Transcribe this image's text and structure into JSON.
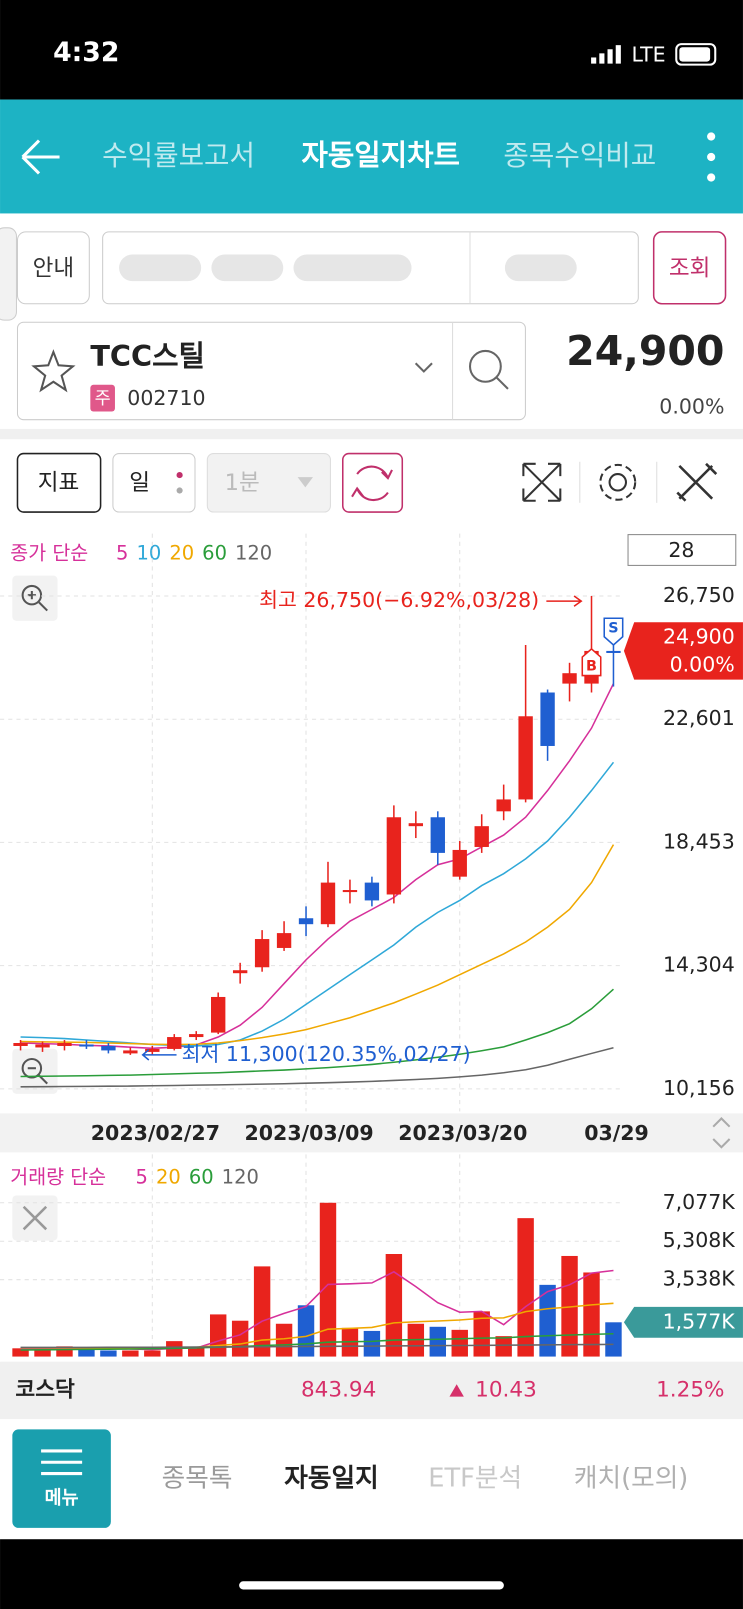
{
  "status": {
    "time": "4:32",
    "network": "LTE"
  },
  "header": {
    "tabs": [
      "수익률보고서",
      "자동일지차트",
      "종목수익비교"
    ]
  },
  "search": {
    "info_button": "안내",
    "query_button": "조회"
  },
  "stock": {
    "name": "TCC스틸",
    "market_badge": "주",
    "code": "002710",
    "price": "24,900",
    "change": "0.00%"
  },
  "toolbar": {
    "indicator": "지표",
    "period": "일",
    "interval": "1분"
  },
  "chart_data": {
    "type": "candlestick",
    "legend_prefix": "종가 단순",
    "visible_count": 28,
    "categories": [
      null,
      null,
      null,
      null,
      null,
      null,
      "2023/02/27",
      null,
      null,
      null,
      null,
      null,
      null,
      "2023/03/09",
      null,
      null,
      null,
      null,
      null,
      null,
      "2023/03/20",
      null,
      null,
      null,
      null,
      null,
      null,
      "03/29"
    ],
    "candles": {
      "open": [
        11600,
        11550,
        11600,
        11650,
        11600,
        11350,
        11400,
        11500,
        11900,
        12050,
        14050,
        14250,
        14900,
        15900,
        15700,
        16800,
        17100,
        16700,
        19000,
        19300,
        17300,
        18300,
        19500,
        19900,
        23500,
        23800,
        23800,
        24900
      ],
      "high": [
        11800,
        11750,
        11800,
        11800,
        11700,
        11550,
        11600,
        12000,
        12100,
        13400,
        14400,
        15500,
        15800,
        16300,
        17800,
        17200,
        17300,
        19700,
        19500,
        19500,
        18500,
        19400,
        20400,
        25100,
        23600,
        24500,
        26750,
        26000
      ],
      "low": [
        11450,
        11400,
        11450,
        11500,
        11350,
        11300,
        11300,
        11450,
        11800,
        12000,
        13700,
        14100,
        14800,
        15300,
        15600,
        16400,
        16300,
        16400,
        18600,
        17700,
        17200,
        18100,
        19200,
        19800,
        21200,
        23200,
        23500,
        23700
      ],
      "close": [
        11700,
        11650,
        11700,
        11600,
        11450,
        11450,
        11500,
        11900,
        12000,
        13250,
        14150,
        15200,
        15400,
        15700,
        17100,
        16850,
        16500,
        19300,
        19100,
        18100,
        18200,
        19000,
        19900,
        22700,
        21700,
        24150,
        24900,
        24900
      ]
    },
    "up_color": "#e8231d",
    "down_color": "#1f5fd1",
    "series": [
      {
        "name": "5",
        "color": "#d6309a",
        "values": [
          11700,
          11680,
          11660,
          11620,
          11600,
          11560,
          11520,
          11560,
          11640,
          11900,
          12300,
          12900,
          13700,
          14500,
          15200,
          15800,
          16200,
          16600,
          17200,
          17700,
          17900,
          18300,
          18700,
          19300,
          20200,
          21200,
          22300,
          23800
        ]
      },
      {
        "name": "10",
        "color": "#2fa8d8",
        "values": [
          11900,
          11880,
          11850,
          11800,
          11750,
          11700,
          11650,
          11620,
          11600,
          11650,
          11800,
          12100,
          12500,
          13000,
          13500,
          14000,
          14500,
          15000,
          15600,
          16100,
          16500,
          17000,
          17400,
          17900,
          18500,
          19300,
          20200,
          21150
        ]
      },
      {
        "name": "20",
        "color": "#f0a800",
        "values": [
          11750,
          11740,
          11730,
          11720,
          11700,
          11680,
          11660,
          11650,
          11660,
          11700,
          11780,
          11880,
          12000,
          12150,
          12350,
          12550,
          12800,
          13050,
          13350,
          13650,
          14000,
          14350,
          14700,
          15100,
          15600,
          16200,
          17100,
          18380
        ]
      },
      {
        "name": "60",
        "color": "#2a9d3a",
        "values": [
          10570,
          10580,
          10590,
          10600,
          10610,
          10620,
          10640,
          10660,
          10680,
          10700,
          10730,
          10760,
          10790,
          10830,
          10870,
          10920,
          10980,
          11050,
          11130,
          11220,
          11320,
          11440,
          11570,
          11800,
          12050,
          12350,
          12850,
          13510
        ]
      },
      {
        "name": "120",
        "color": "#666666",
        "values": [
          10225,
          10230,
          10235,
          10240,
          10245,
          10250,
          10260,
          10270,
          10280,
          10290,
          10300,
          10315,
          10330,
          10345,
          10365,
          10385,
          10410,
          10440,
          10470,
          10510,
          10560,
          10620,
          10700,
          10800,
          10950,
          11150,
          11350,
          11540
        ]
      }
    ],
    "ylim": [
      9400,
      28850
    ],
    "yticks": [
      {
        "value": 26750,
        "label": "26,750"
      },
      {
        "value": 22601,
        "label": "22,601"
      },
      {
        "value": 18453,
        "label": "18,453"
      },
      {
        "value": 14304,
        "label": "14,304"
      },
      {
        "value": 10156,
        "label": "10,156"
      }
    ],
    "grid": true,
    "current_price": {
      "value": 24900,
      "label": "24,900"
    },
    "current_change": "0.00%",
    "high_annotation": "최고 26,750(−6.92%,03/28)",
    "low_annotation": "최저 11,300(120.35%,02/27)",
    "buy_marker": "B",
    "sell_marker": "S",
    "volume": {
      "legend_prefix": "거래량 단순",
      "values": [
        380,
        380,
        470,
        330,
        280,
        280,
        280,
        710,
        420,
        1940,
        1650,
        4150,
        1510,
        2360,
        7077,
        1320,
        1180,
        4720,
        1510,
        1370,
        1230,
        2080,
        940,
        6370,
        3300,
        4630,
        3870,
        1577
      ],
      "series": [
        {
          "name": "5",
          "color": "#d6309a",
          "values": [
            350,
            360,
            370,
            380,
            370,
            350,
            320,
            380,
            390,
            720,
            1000,
            1630,
            1990,
            2300,
            3320,
            3350,
            3390,
            3900,
            3220,
            2480,
            2040,
            2080,
            1470,
            2300,
            2990,
            3300,
            3840,
            3960
          ]
        },
        {
          "name": "20",
          "color": "#f0a800",
          "values": [
            400,
            400,
            400,
            400,
            400,
            400,
            400,
            420,
            430,
            510,
            580,
            760,
            820,
            930,
            1260,
            1300,
            1340,
            1550,
            1600,
            1640,
            1680,
            1760,
            1780,
            2070,
            2200,
            2280,
            2380,
            2450
          ]
        },
        {
          "name": "60",
          "color": "#2a9d3a",
          "values": [
            300,
            310,
            320,
            330,
            340,
            350,
            360,
            380,
            400,
            430,
            460,
            510,
            540,
            580,
            660,
            680,
            700,
            760,
            780,
            800,
            820,
            850,
            860,
            920,
            960,
            990,
            1020,
            1050
          ]
        },
        {
          "name": "120",
          "color": "#666666",
          "values": [
            420,
            422,
            424,
            426,
            428,
            430,
            432,
            435,
            438,
            442,
            446,
            452,
            458,
            464,
            472,
            478,
            484,
            492,
            498,
            504,
            510,
            516,
            522,
            530,
            538,
            546,
            552,
            560
          ]
        }
      ],
      "ylim": [
        0,
        7650
      ],
      "yticks": [
        {
          "value": 7077,
          "label": "7,077K"
        },
        {
          "value": 5308,
          "label": "5,308K"
        },
        {
          "value": 3538,
          "label": "3,538K"
        }
      ],
      "current": {
        "value": 1577,
        "label": "1,577K"
      }
    }
  },
  "market": {
    "name": "코스닥",
    "value": "843.94",
    "change": "10.43",
    "change_rate": "1.25%"
  },
  "bottom_nav": {
    "menu": "메뉴",
    "items": [
      "종목톡",
      "자동일지",
      "ETF분석",
      "캐치(모의)"
    ]
  }
}
